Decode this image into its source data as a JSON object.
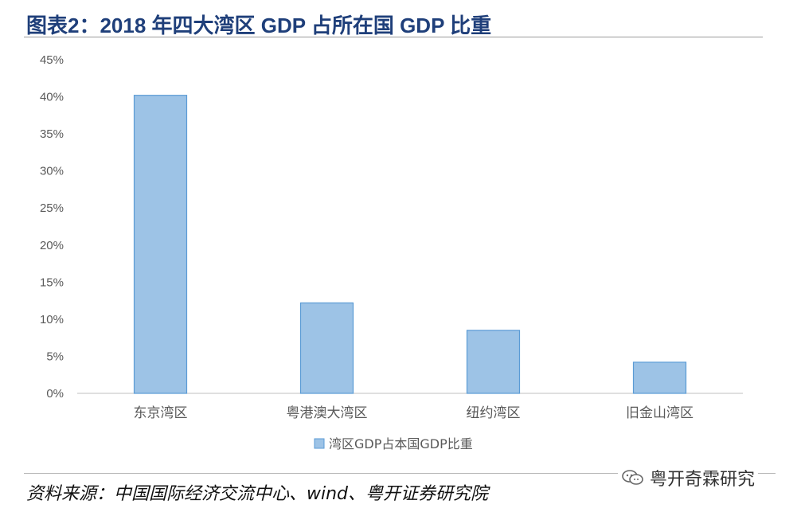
{
  "title": "图表2：2018 年四大湾区 GDP 占所在国 GDP 比重",
  "source": "资料来源：中国国际经济交流中心、wind、粤开证券研究院",
  "watermark": {
    "text": "粤开奇霖研究",
    "icon": "wechat-icon"
  },
  "colors": {
    "bar_fill": "#9dc3e6",
    "bar_stroke": "#5b9bd5",
    "title": "#1f3f7a",
    "axis": "#bfbfbf",
    "text": "#595959"
  },
  "chart_data": {
    "type": "bar",
    "categories": [
      "东京湾区",
      "粤港澳大湾区",
      "纽约湾区",
      "旧金山湾区"
    ],
    "series": [
      {
        "name": "湾区GDP占本国GDP比重",
        "values": [
          40.2,
          12.2,
          8.5,
          4.2
        ]
      }
    ],
    "ylim": [
      0,
      45
    ],
    "yticks": [
      0,
      5,
      10,
      15,
      20,
      25,
      30,
      35,
      40,
      45
    ],
    "ytick_labels": [
      "0%",
      "5%",
      "10%",
      "15%",
      "20%",
      "25%",
      "30%",
      "35%",
      "40%",
      "45%"
    ],
    "grid": false,
    "legend_position": "bottom"
  }
}
